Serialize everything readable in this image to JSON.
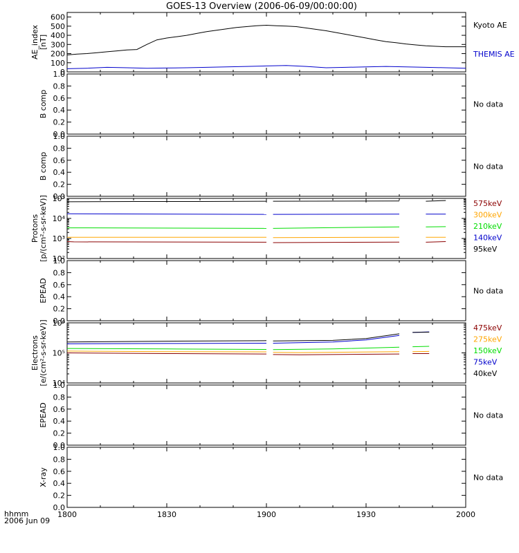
{
  "title": "GOES-13 Overview (2006-06-09/00:00:00)",
  "time_axis": {
    "label_line1": "hhmm",
    "label_line2": "2006 Jun 09",
    "ticks": [
      "1800",
      "1830",
      "1900",
      "1930",
      "2000"
    ],
    "tick_minutes": [
      0,
      30,
      60,
      90,
      120
    ],
    "range_minutes": [
      0,
      120
    ]
  },
  "colors": {
    "black": "#000000",
    "blue": "#0000cc",
    "maroon": "#8b0000",
    "orange": "#ffa500",
    "green": "#00dd00",
    "axis": "#000000"
  },
  "chart_data": [
    {
      "id": "ae",
      "type": "line",
      "ylabel": [
        "AE_index",
        "[nT]"
      ],
      "ylim": [
        0,
        650
      ],
      "yticks": [
        "0",
        "100",
        "200",
        "300",
        "400",
        "500",
        "600"
      ],
      "ytick_values": [
        0,
        100,
        200,
        300,
        400,
        500,
        600
      ],
      "series": [
        {
          "name": "Kyoto AE",
          "color": "#000000",
          "x": [
            0,
            3,
            6,
            9,
            12,
            15,
            18,
            21,
            24,
            27,
            30,
            33,
            36,
            39,
            42,
            45,
            48,
            51,
            54,
            57,
            60,
            63,
            66,
            69,
            72,
            75,
            78,
            81,
            84,
            87,
            90,
            93,
            96,
            99,
            102,
            105,
            108,
            111,
            114,
            117,
            120
          ],
          "y": [
            185,
            195,
            200,
            210,
            220,
            230,
            240,
            245,
            300,
            350,
            370,
            385,
            400,
            420,
            440,
            455,
            470,
            485,
            495,
            505,
            510,
            505,
            500,
            495,
            480,
            465,
            450,
            430,
            410,
            390,
            370,
            350,
            330,
            320,
            305,
            295,
            285,
            280,
            275,
            275,
            275
          ]
        },
        {
          "name": "THEMIS AE",
          "color": "#0000cc",
          "x": [
            0,
            6,
            12,
            18,
            24,
            30,
            36,
            42,
            48,
            54,
            60,
            66,
            72,
            78,
            84,
            90,
            96,
            102,
            108,
            114,
            120
          ],
          "y": [
            35,
            40,
            50,
            45,
            40,
            42,
            45,
            50,
            55,
            60,
            65,
            70,
            60,
            45,
            50,
            55,
            60,
            55,
            50,
            45,
            40
          ]
        }
      ]
    },
    {
      "id": "bcomp1",
      "type": "line",
      "ylabel": [
        "B comp"
      ],
      "ylim": [
        0,
        1
      ],
      "yticks": [
        "0.0",
        "0.2",
        "0.4",
        "0.6",
        "0.8",
        "1.0"
      ],
      "ytick_values": [
        0,
        0.2,
        0.4,
        0.6,
        0.8,
        1.0
      ],
      "note": "No data",
      "series": []
    },
    {
      "id": "bcomp2",
      "type": "line",
      "ylabel": [
        "B comp"
      ],
      "ylim": [
        0,
        1
      ],
      "yticks": [
        "0.0",
        "0.2",
        "0.4",
        "0.6",
        "0.8",
        "1.0"
      ],
      "ytick_values": [
        0,
        0.2,
        0.4,
        0.6,
        0.8,
        1.0
      ],
      "note": "No data",
      "series": []
    },
    {
      "id": "protons",
      "type": "line",
      "log": true,
      "ylabel": [
        "Protons",
        "[p/(cm²-s-sr-keV)]"
      ],
      "ylim": [
        100,
        100000
      ],
      "yticks": [
        "10²",
        "10³",
        "10⁴",
        "10⁵"
      ],
      "ytick_values": [
        100,
        1000,
        10000,
        100000
      ],
      "series": [
        {
          "name": "575keV",
          "color": "#8b0000",
          "segments": [
            {
              "x": [
                0,
                2,
                60
              ],
              "y": [
                700,
                680,
                650
              ]
            },
            {
              "x": [
                62,
                100
              ],
              "y": [
                620,
                660
              ]
            },
            {
              "x": [
                108,
                114
              ],
              "y": [
                650,
                700
              ]
            }
          ]
        },
        {
          "name": "300keV",
          "color": "#ffa500",
          "segments": [
            {
              "x": [
                0,
                60
              ],
              "y": [
                1150,
                1150
              ]
            },
            {
              "x": [
                62,
                100
              ],
              "y": [
                1100,
                1150
              ]
            },
            {
              "x": [
                108,
                114
              ],
              "y": [
                1150,
                1150
              ]
            }
          ]
        },
        {
          "name": "210keV",
          "color": "#00dd00",
          "segments": [
            {
              "x": [
                0,
                60
              ],
              "y": [
                3400,
                3200
              ]
            },
            {
              "x": [
                62,
                100
              ],
              "y": [
                3200,
                3800
              ]
            },
            {
              "x": [
                108,
                114
              ],
              "y": [
                3800,
                3900
              ]
            }
          ]
        },
        {
          "name": "140keV",
          "color": "#0000cc",
          "segments": [
            {
              "x": [
                0,
                60
              ],
              "y": [
                17000,
                16000
              ]
            },
            {
              "x": [
                62,
                100
              ],
              "y": [
                16000,
                16500
              ]
            },
            {
              "x": [
                108,
                114
              ],
              "y": [
                16500,
                16500
              ]
            }
          ]
        },
        {
          "name": "95keV",
          "color": "#000000",
          "segments": [
            {
              "x": [
                0,
                20,
                40,
                60
              ],
              "y": [
                68000,
                70000,
                70000,
                72000
              ]
            },
            {
              "x": [
                62,
                100
              ],
              "y": [
                72000,
                74000
              ]
            },
            {
              "x": [
                108,
                114
              ],
              "y": [
                72000,
                78000
              ]
            }
          ]
        }
      ]
    },
    {
      "id": "epead1",
      "type": "line",
      "ylabel": [
        "EPEAD"
      ],
      "ylim": [
        0,
        1
      ],
      "yticks": [
        "0.0",
        "0.2",
        "0.4",
        "0.6",
        "0.8",
        "1.0"
      ],
      "ytick_values": [
        0,
        0.2,
        0.4,
        0.6,
        0.8,
        1.0
      ],
      "note": "No data",
      "series": []
    },
    {
      "id": "electrons",
      "type": "line",
      "log": true,
      "ylabel": [
        "Electrons",
        "[e/(cm²-s-sr-keV)]"
      ],
      "ylim": [
        10000,
        1000000
      ],
      "yticks": [
        "10⁴",
        "10⁵",
        "10⁶"
      ],
      "ytick_values": [
        10000,
        100000,
        1000000
      ],
      "series": [
        {
          "name": "475keV",
          "color": "#8b0000",
          "segments": [
            {
              "x": [
                0,
                30,
                60
              ],
              "y": [
                100000,
                95000,
                92000
              ]
            },
            {
              "x": [
                62,
                70,
                100
              ],
              "y": [
                88000,
                86000,
                92000
              ]
            },
            {
              "x": [
                104,
                109
              ],
              "y": [
                95000,
                95000
              ]
            }
          ]
        },
        {
          "name": "275keV",
          "color": "#ffa500",
          "segments": [
            {
              "x": [
                0,
                30,
                60
              ],
              "y": [
                115000,
                110000,
                108000
              ]
            },
            {
              "x": [
                62,
                70,
                100
              ],
              "y": [
                104000,
                102000,
                110000
              ]
            },
            {
              "x": [
                104,
                109
              ],
              "y": [
                110000,
                112000
              ]
            }
          ]
        },
        {
          "name": "150keV",
          "color": "#00dd00",
          "segments": [
            {
              "x": [
                0,
                30,
                60
              ],
              "y": [
                140000,
                135000,
                130000
              ]
            },
            {
              "x": [
                62,
                80,
                100
              ],
              "y": [
                128000,
                135000,
                155000
              ]
            },
            {
              "x": [
                104,
                109
              ],
              "y": [
                160000,
                165000
              ]
            }
          ]
        },
        {
          "name": "75keV",
          "color": "#0000cc",
          "segments": [
            {
              "x": [
                0,
                30,
                60
              ],
              "y": [
                200000,
                205000,
                210000
              ]
            },
            {
              "x": [
                62,
                80,
                90,
                100
              ],
              "y": [
                210000,
                230000,
                270000,
                380000
              ]
            },
            {
              "x": [
                104,
                109
              ],
              "y": [
                480000,
                500000
              ]
            }
          ]
        },
        {
          "name": "40keV",
          "color": "#000000",
          "segments": [
            {
              "x": [
                0,
                30,
                60
              ],
              "y": [
                230000,
                245000,
                255000
              ]
            },
            {
              "x": [
                62,
                80,
                90,
                100
              ],
              "y": [
                250000,
                260000,
                300000,
                430000
              ]
            },
            {
              "x": [
                104,
                109
              ],
              "y": [
                480000,
                490000
              ]
            }
          ]
        }
      ]
    },
    {
      "id": "epead2",
      "type": "line",
      "ylabel": [
        "EPEAD"
      ],
      "ylim": [
        0,
        1
      ],
      "yticks": [
        "0.0",
        "0.2",
        "0.4",
        "0.6",
        "0.8",
        "1.0"
      ],
      "ytick_values": [
        0,
        0.2,
        0.4,
        0.6,
        0.8,
        1.0
      ],
      "note": "No data",
      "series": []
    },
    {
      "id": "xray",
      "type": "line",
      "ylabel": [
        "X-ray"
      ],
      "ylim": [
        0,
        1
      ],
      "yticks": [
        "0.0",
        "0.2",
        "0.4",
        "0.6",
        "0.8",
        "1.0"
      ],
      "ytick_values": [
        0,
        0.2,
        0.4,
        0.6,
        0.8,
        1.0
      ],
      "note": "No data",
      "series": []
    }
  ]
}
